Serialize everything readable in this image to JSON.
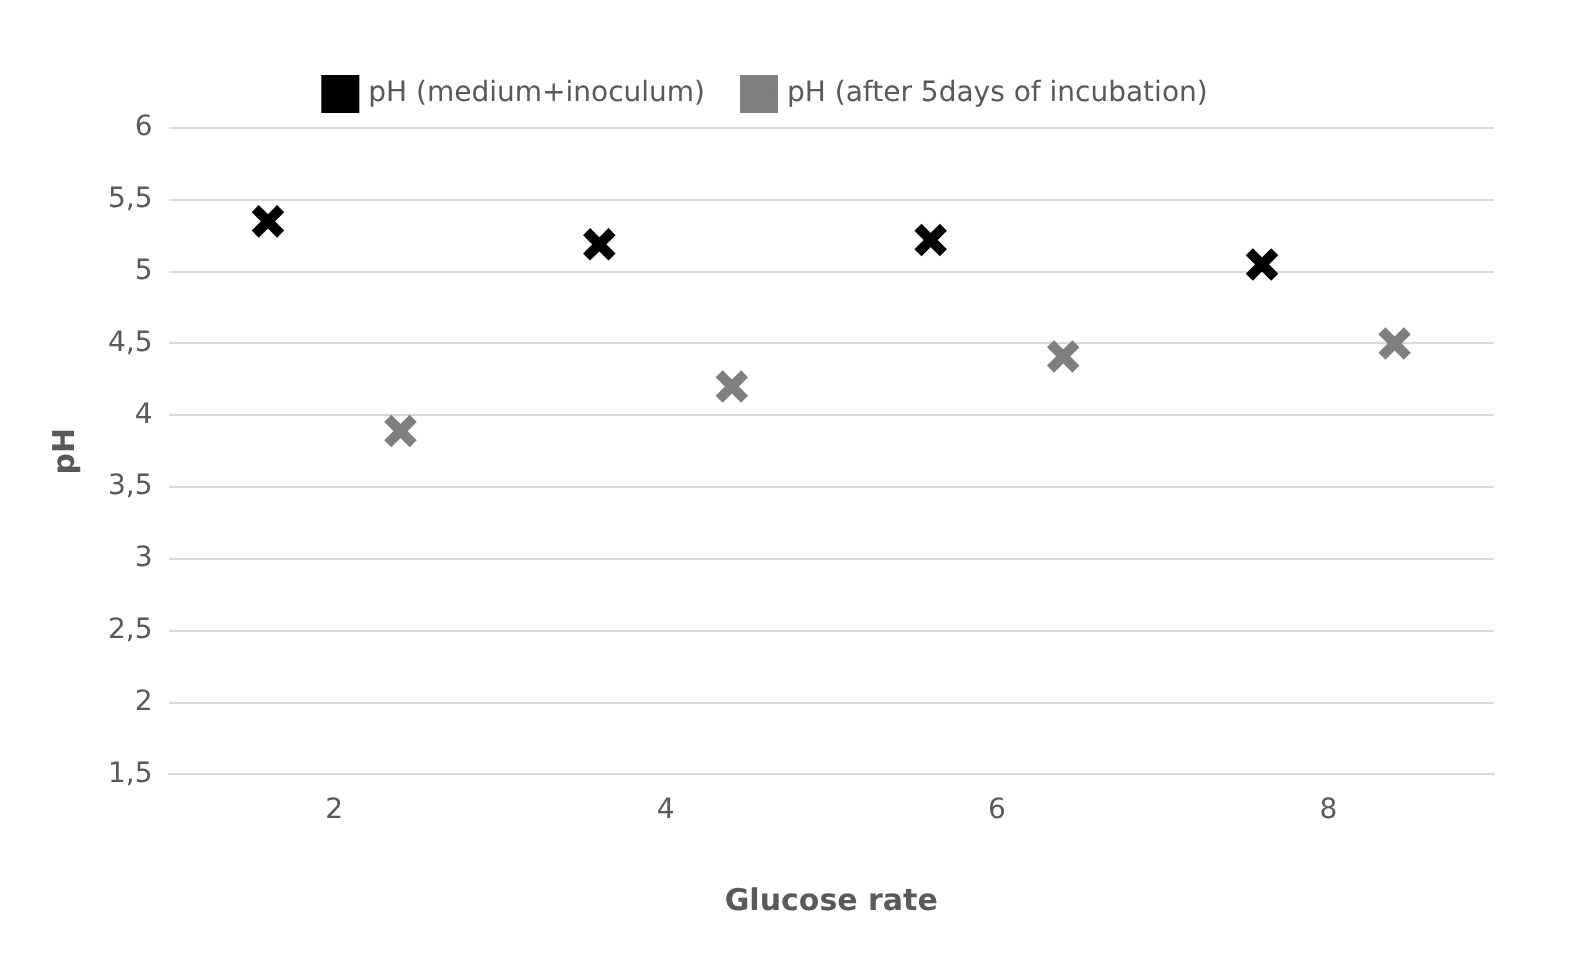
{
  "chart_data": {
    "type": "scatter",
    "xlabel": "Glucose rate",
    "ylabel": "pH",
    "categories": [
      "2",
      "4",
      "6",
      "8"
    ],
    "series": [
      {
        "name": "pH (medium+inoculum)",
        "color": "#000000",
        "values": [
          5.35,
          5.19,
          5.22,
          5.05
        ]
      },
      {
        "name": "pH (after 5days of incubation)",
        "color": "#7f7f7f",
        "values": [
          3.89,
          4.2,
          4.41,
          4.5
        ]
      }
    ],
    "ylim": [
      1.5,
      6
    ],
    "yticks": [
      {
        "value": 1.5,
        "label": "1,5"
      },
      2,
      {
        "value": 2.5,
        "label": "2,5"
      },
      3,
      {
        "value": 3.5,
        "label": "3,5"
      },
      4,
      {
        "value": 4.5,
        "label": "4,5"
      },
      5,
      {
        "value": 5.5,
        "label": "5,5"
      },
      6
    ],
    "grid": "y",
    "legend": "top",
    "marker": "cross"
  }
}
